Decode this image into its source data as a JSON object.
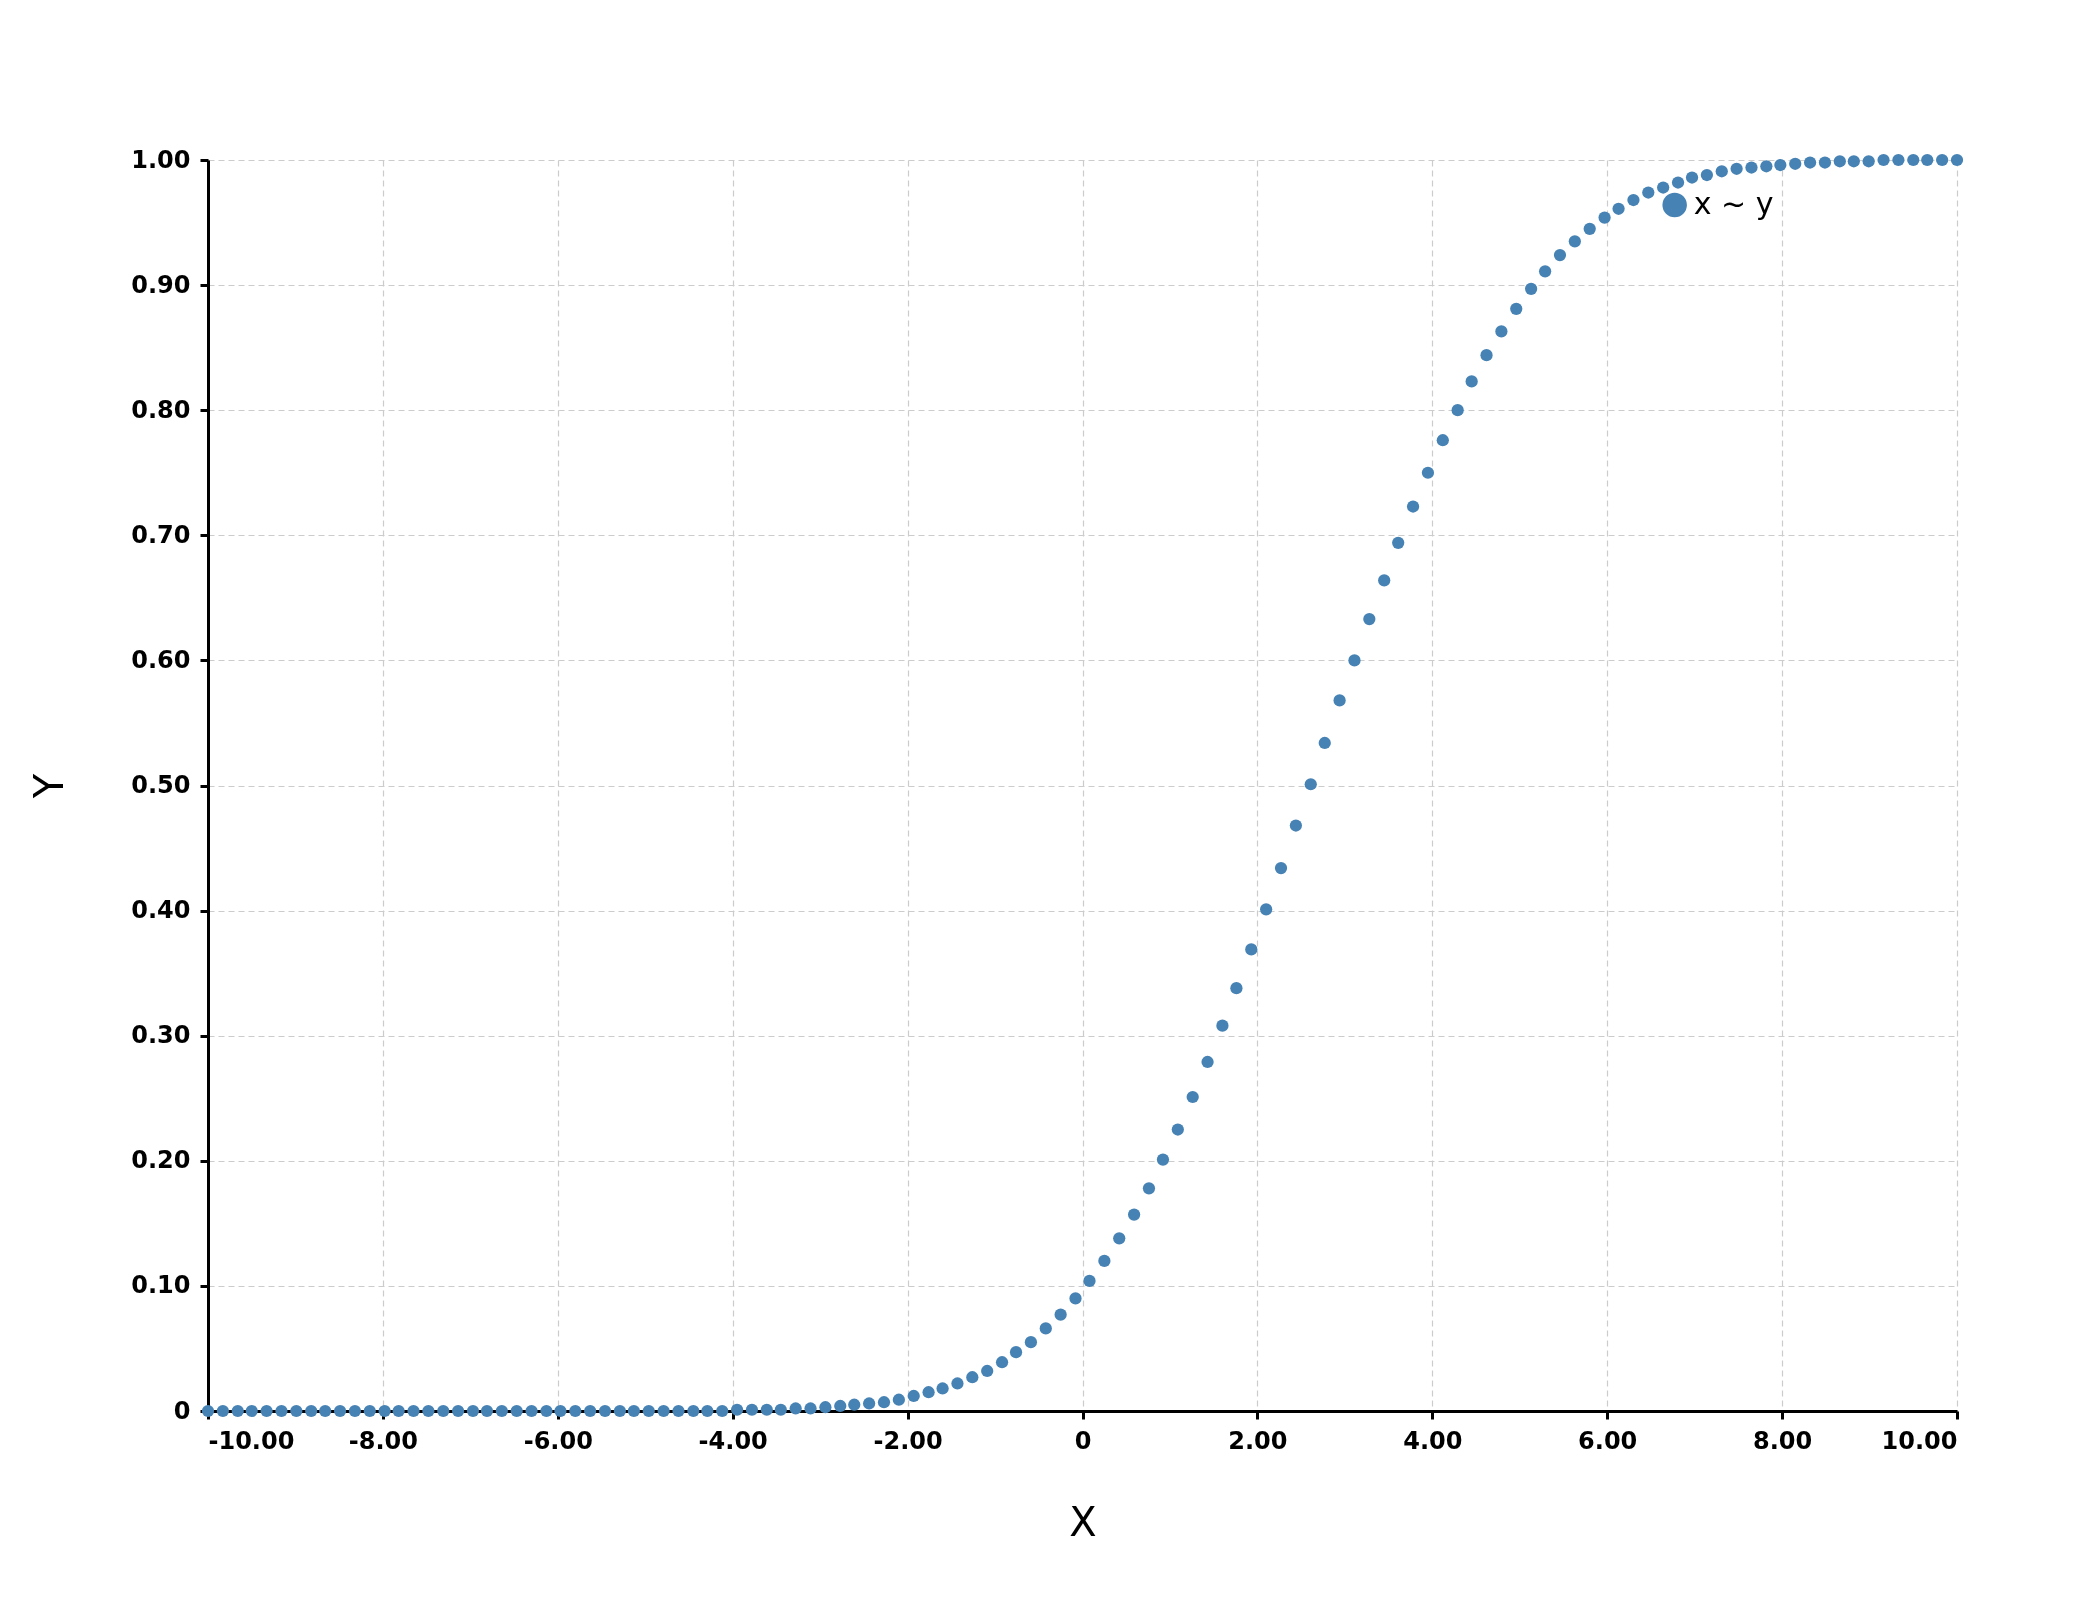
{
  "chart_data": {
    "type": "scatter",
    "xlabel": "X",
    "ylabel": "Y",
    "x": [
      -10.0,
      -9.83,
      -9.66,
      -9.5,
      -9.33,
      -9.16,
      -8.99,
      -8.82,
      -8.66,
      -8.49,
      -8.32,
      -8.15,
      -7.98,
      -7.82,
      -7.65,
      -7.48,
      -7.31,
      -7.14,
      -6.97,
      -6.81,
      -6.64,
      -6.47,
      -6.3,
      -6.13,
      -5.97,
      -5.8,
      -5.63,
      -5.46,
      -5.29,
      -5.13,
      -4.96,
      -4.79,
      -4.62,
      -4.45,
      -4.29,
      -4.12,
      -3.95,
      -3.78,
      -3.61,
      -3.45,
      -3.28,
      -3.11,
      -2.94,
      -2.77,
      -2.61,
      -2.44,
      -2.27,
      -2.1,
      -1.93,
      -1.76,
      -1.6,
      -1.43,
      -1.26,
      -1.09,
      -0.92,
      -0.76,
      -0.59,
      -0.42,
      -0.25,
      -0.08,
      0.08,
      0.25,
      0.42,
      0.59,
      0.76,
      0.92,
      1.09,
      1.26,
      1.43,
      1.6,
      1.76,
      1.93,
      2.1,
      2.27,
      2.44,
      2.61,
      2.77,
      2.94,
      3.11,
      3.28,
      3.45,
      3.61,
      3.78,
      3.95,
      4.12,
      4.29,
      4.45,
      4.62,
      4.79,
      4.96,
      5.13,
      5.29,
      5.46,
      5.63,
      5.8,
      5.97,
      6.13,
      6.3,
      6.47,
      6.64,
      6.81,
      6.97,
      7.14,
      7.31,
      7.48,
      7.65,
      7.82,
      7.98,
      8.15,
      8.32,
      8.49,
      8.66,
      8.82,
      8.99,
      9.16,
      9.33,
      9.5,
      9.66,
      9.83,
      10.0
    ],
    "series": [
      {
        "name": "x ~ y",
        "color": "#4682b4",
        "values": [
          0,
          0,
          0,
          0,
          0,
          0,
          0,
          0,
          0,
          0,
          0,
          0,
          0,
          0,
          0,
          0,
          0,
          0,
          0,
          0,
          0,
          0,
          0,
          0,
          0,
          0,
          0,
          0,
          0,
          0,
          0,
          0,
          0,
          0,
          0,
          0,
          0.001,
          0.001,
          0.001,
          0.001,
          0.002,
          0.002,
          0.003,
          0.004,
          0.005,
          0.006,
          0.007,
          0.009,
          0.012,
          0.015,
          0.018,
          0.022,
          0.027,
          0.032,
          0.039,
          0.047,
          0.055,
          0.066,
          0.077,
          0.09,
          0.104,
          0.12,
          0.138,
          0.157,
          0.178,
          0.201,
          0.225,
          0.251,
          0.279,
          0.308,
          0.338,
          0.369,
          0.401,
          0.434,
          0.468,
          0.501,
          0.534,
          0.568,
          0.6,
          0.633,
          0.664,
          0.694,
          0.723,
          0.75,
          0.776,
          0.8,
          0.823,
          0.844,
          0.863,
          0.881,
          0.897,
          0.911,
          0.924,
          0.935,
          0.945,
          0.954,
          0.961,
          0.968,
          0.974,
          0.978,
          0.982,
          0.986,
          0.988,
          0.991,
          0.993,
          0.994,
          0.995,
          0.996,
          0.997,
          0.998,
          0.998,
          0.999,
          0.999,
          0.999,
          1,
          1,
          1,
          1,
          1,
          1
        ]
      }
    ],
    "xlim": [
      -10,
      10
    ],
    "xticks": [
      {
        "value": -10,
        "label": "-10.00"
      },
      {
        "value": -8,
        "label": "-8.00"
      },
      {
        "value": -6,
        "label": "-6.00"
      },
      {
        "value": -4,
        "label": "-4.00"
      },
      {
        "value": -2,
        "label": "-2.00"
      },
      0,
      {
        "value": 2,
        "label": "2.00"
      },
      {
        "value": 4,
        "label": "4.00"
      },
      {
        "value": 6,
        "label": "6.00"
      },
      {
        "value": 8,
        "label": "8.00"
      },
      {
        "value": 10,
        "label": "10.00"
      }
    ],
    "ylim": [
      0,
      1
    ],
    "yticks": [
      0,
      {
        "value": 0.1,
        "label": "0.10"
      },
      {
        "value": 0.2,
        "label": "0.20"
      },
      {
        "value": 0.3,
        "label": "0.30"
      },
      {
        "value": 0.4,
        "label": "0.40"
      },
      {
        "value": 0.5,
        "label": "0.50"
      },
      {
        "value": 0.6,
        "label": "0.60"
      },
      {
        "value": 0.7,
        "label": "0.70"
      },
      {
        "value": 0.8,
        "label": "0.80"
      },
      {
        "value": 0.9,
        "label": "0.90"
      },
      {
        "value": 1,
        "label": "1.00"
      }
    ],
    "grid": true,
    "legend": "top right",
    "marker": "circle"
  }
}
